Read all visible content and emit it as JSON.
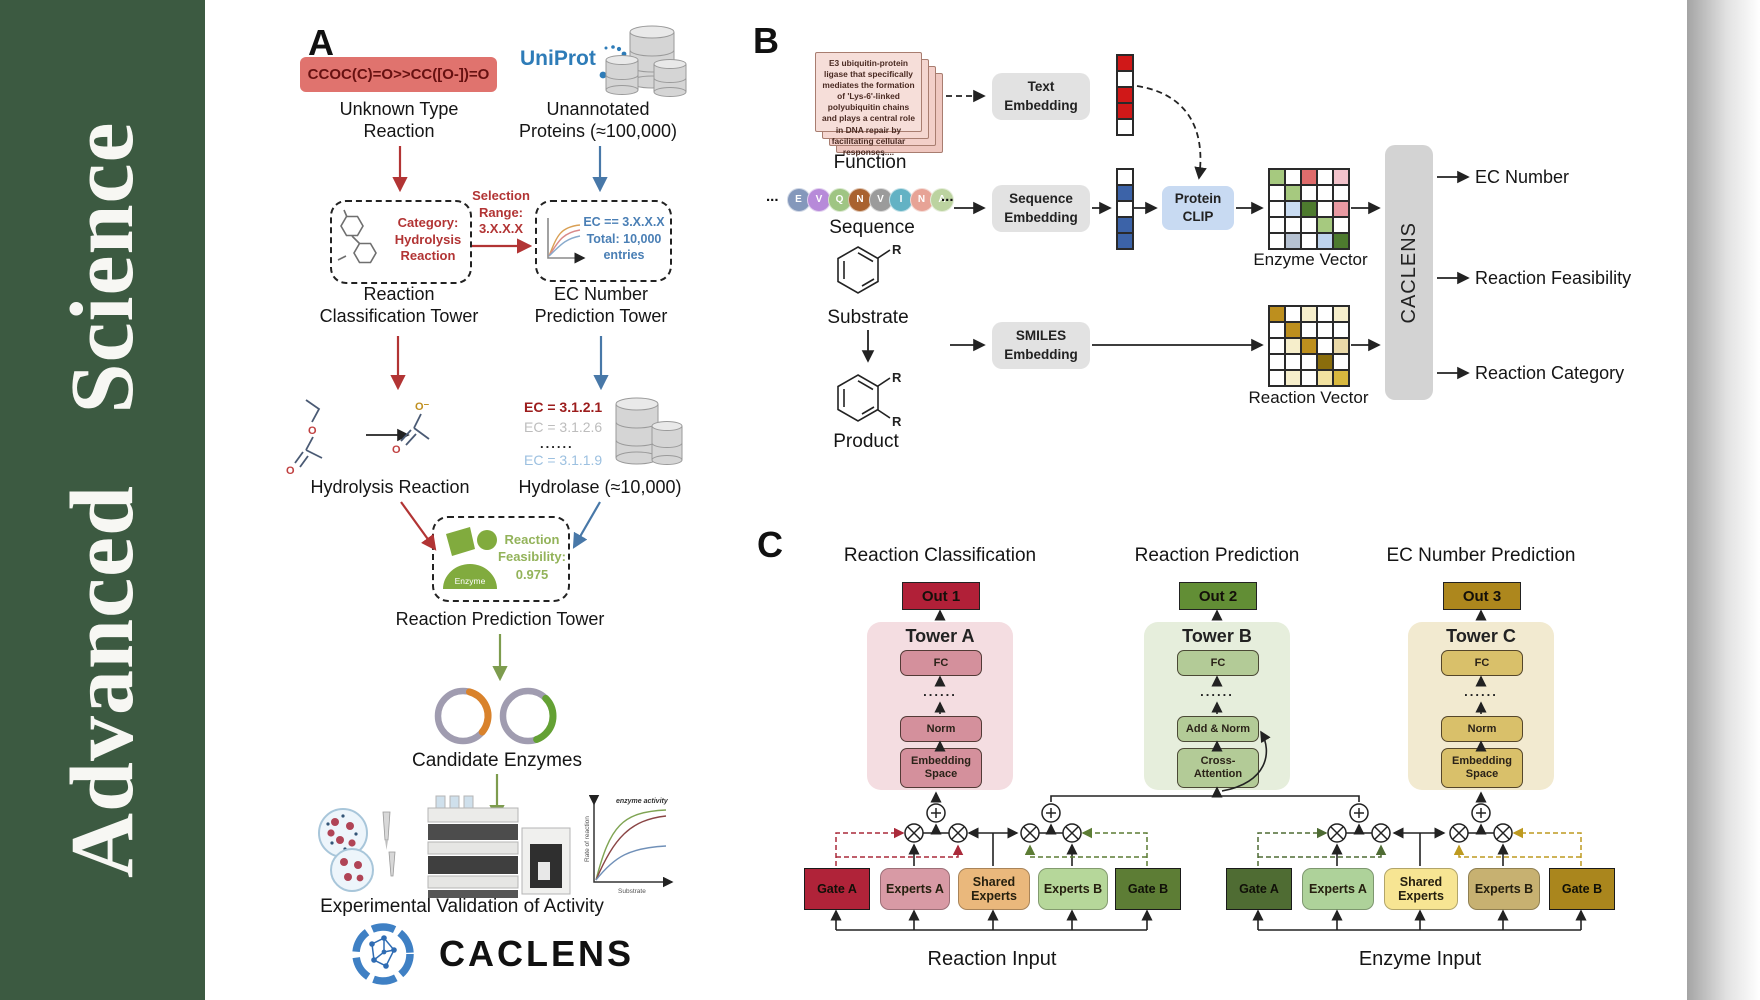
{
  "journal": {
    "title": "Advanced Science"
  },
  "colors": {
    "sidebar_green": "#3c5a41",
    "uniprot_blue": "#2e7cb8",
    "caclens_blue": "#3f80c4",
    "red_accent": "#b23434",
    "blue_accent": "#4878a8",
    "green_accent": "#7d9c4e",
    "out1_red": "#b12038",
    "out2_green": "#628e35",
    "out3_gold": "#ad871d"
  },
  "panel_a": {
    "label": "A",
    "smiles_reaction": "CCOC(C)=O>>CC([O-])=O",
    "uniprot_logo": "UniProt",
    "unknown_reaction": "Unknown Type\nReaction",
    "unannotated_proteins": "Unannotated\nProteins (≈100,000)",
    "selection_range": "Selection\nRange:\n3.X.X.X",
    "category_box": "Category:\nHydrolysis\nReaction",
    "ec_filter_box": "EC == 3.X.X.X\nTotal: 10,000\nentries",
    "classification_tower": "Reaction\nClassification Tower",
    "ec_prediction_tower": "EC Number\nPrediction Tower",
    "ec_results": [
      "EC = 3.1.2.1",
      "EC = 3.1.2.6",
      "......",
      "EC = 3.1.1.9"
    ],
    "hydrolysis_reaction": "Hydrolysis Reaction",
    "hydrolase": "Hydrolase (≈10,000)",
    "enzyme_badge": "Enzyme",
    "feasibility": "Reaction\nFeasibility:\n0.975",
    "reaction_prediction_tower": "Reaction Prediction Tower",
    "candidate_enzymes": "Candidate Enzymes",
    "activity_plot": {
      "annotation": "enzyme activity",
      "ylabel": "Rate of reaction",
      "xlabel": "Substrate"
    },
    "experimental_validation": "Experimental Validation of Activity",
    "brand": "CACLENS"
  },
  "panel_b": {
    "label": "B",
    "function_card": "E3 ubiquitin-protein ligase that specifically mediates the formation of 'Lys-6'-linked polyubiquitin chains and plays a central role in DNA repair by facilitating cellular responses....",
    "function_label": "Function",
    "ellipsis": "...",
    "residues": [
      {
        "l": "E",
        "c": "#8498bb"
      },
      {
        "l": "V",
        "c": "#b78ad9"
      },
      {
        "l": "Q",
        "c": "#9fc583"
      },
      {
        "l": "N",
        "c": "#a9622f"
      },
      {
        "l": "V",
        "c": "#9b9b9b"
      },
      {
        "l": "I",
        "c": "#63b2c4"
      },
      {
        "l": "N",
        "c": "#e7a396"
      },
      {
        "l": "A",
        "c": "#bcd3a0"
      }
    ],
    "sequence_label": "Sequence",
    "substrate_label": "Substrate",
    "product_label": "Product",
    "r_group": "R",
    "text_embedding": "Text\nEmbedding",
    "sequence_embedding": "Sequence\nEmbedding",
    "smiles_embedding": "SMILES\nEmbedding",
    "protein_clip": "Protein\nCLIP",
    "text_vector": [
      "#d01818",
      "#ffffff",
      "#d01818",
      "#d01818",
      "#ffffff"
    ],
    "sequence_vector": [
      "#ffffff",
      "#3c63a8",
      "#ffffff",
      "#3c63a8",
      "#3c63a8"
    ],
    "enzyme_grid": [
      [
        "#a6c97f",
        "#ffffff",
        "#e06c6c",
        "#ffffff",
        "#f3c3cb"
      ],
      [
        "#ffffff",
        "#a6c97f",
        "#ffffff",
        "#ffffff",
        "#ffffff"
      ],
      [
        "#ffffff",
        "#c9dcf2",
        "#4d7a2e",
        "#ffffff",
        "#e89aa2"
      ],
      [
        "#ffffff",
        "#ffffff",
        "#ffffff",
        "#a6c97f",
        "#ffffff"
      ],
      [
        "#ffffff",
        "#b6c2d2",
        "#ffffff",
        "#bed3ec",
        "#4d7a2e"
      ]
    ],
    "reaction_grid": [
      [
        "#bd8f1e",
        "#ffffff",
        "#f6eecb",
        "#ffffff",
        "#f6eecb"
      ],
      [
        "#ffffff",
        "#bd8f1e",
        "#ffffff",
        "#ffffff",
        "#ffffff"
      ],
      [
        "#ffffff",
        "#f6eecb",
        "#bd8f1e",
        "#ffffff",
        "#ead9a8"
      ],
      [
        "#ffffff",
        "#ffffff",
        "#ffffff",
        "#8a6d0c",
        "#ffffff"
      ],
      [
        "#ffffff",
        "#f6eecb",
        "#ffffff",
        "#f2e2a0",
        "#d8b83e"
      ]
    ],
    "enzyme_vector_label": "Enzyme Vector",
    "reaction_vector_label": "Reaction Vector",
    "caclens_module": "CACLENS",
    "outputs": [
      "EC Number",
      "Reaction Feasibility",
      "Reaction Category"
    ]
  },
  "panel_c": {
    "label": "C",
    "headers": [
      "Reaction Classification",
      "Reaction Prediction",
      "EC Number Prediction"
    ],
    "outputs": [
      "Out 1",
      "Out 2",
      "Out 3"
    ],
    "towers": [
      {
        "name": "Tower A",
        "fc": "FC",
        "dots": "......",
        "norm": "Norm",
        "base": "Embedding\nSpace"
      },
      {
        "name": "Tower B",
        "fc": "FC",
        "dots": "......",
        "norm": "Add & Norm",
        "base": "Cross-\nAttention"
      },
      {
        "name": "Tower C",
        "fc": "FC",
        "dots": "......",
        "norm": "Norm",
        "base": "Embedding\nSpace"
      }
    ],
    "reaction_group": {
      "gate_a": "Gate A",
      "experts_a": "Experts A",
      "shared": "Shared\nExperts",
      "experts_b": "Experts B",
      "gate_b": "Gate B",
      "input": "Reaction Input"
    },
    "enzyme_group": {
      "gate_a": "Gate A",
      "experts_a": "Experts A",
      "shared": "Shared\nExperts",
      "experts_b": "Experts B",
      "gate_b": "Gate B",
      "input": "Enzyme Input"
    }
  }
}
